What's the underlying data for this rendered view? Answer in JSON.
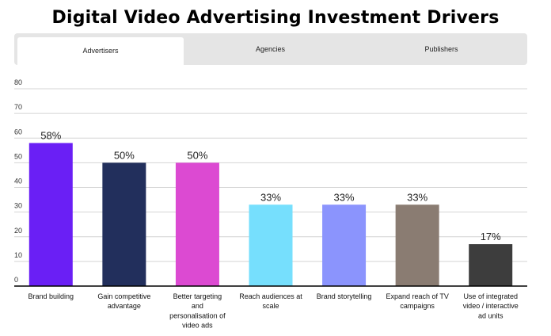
{
  "title": "Digital Video Advertising Investment Drivers",
  "tabs": [
    {
      "label": "Advertisers",
      "active": true
    },
    {
      "label": "Agencies",
      "active": false
    },
    {
      "label": "Publishers",
      "active": false
    }
  ],
  "chart_data": {
    "type": "bar",
    "title": "Digital Video Advertising Investment Drivers",
    "xlabel": "",
    "ylabel": "",
    "ylim": [
      0,
      80
    ],
    "yticks": [
      0,
      10,
      20,
      30,
      40,
      50,
      60,
      70,
      80
    ],
    "grid": true,
    "categories": [
      [
        "Brand building"
      ],
      [
        "Gain competitive",
        "advantage"
      ],
      [
        "Better targeting",
        "and",
        "personalisation of",
        "video ads"
      ],
      [
        "Reach audiences at",
        "scale"
      ],
      [
        "Brand storytelling"
      ],
      [
        "Expand reach of TV",
        "campaigns"
      ],
      [
        "Use of integrated",
        "video / interactive",
        "ad units"
      ]
    ],
    "values": [
      58,
      50,
      50,
      33,
      33,
      33,
      17
    ],
    "data_labels": [
      "58%",
      "50%",
      "50%",
      "33%",
      "33%",
      "33%",
      "17%"
    ],
    "colors": [
      "#6a1ff5",
      "#222f5c",
      "#dc4ad2",
      "#76dffd",
      "#8b94fd",
      "#8a7c72",
      "#3d3d3d"
    ]
  }
}
